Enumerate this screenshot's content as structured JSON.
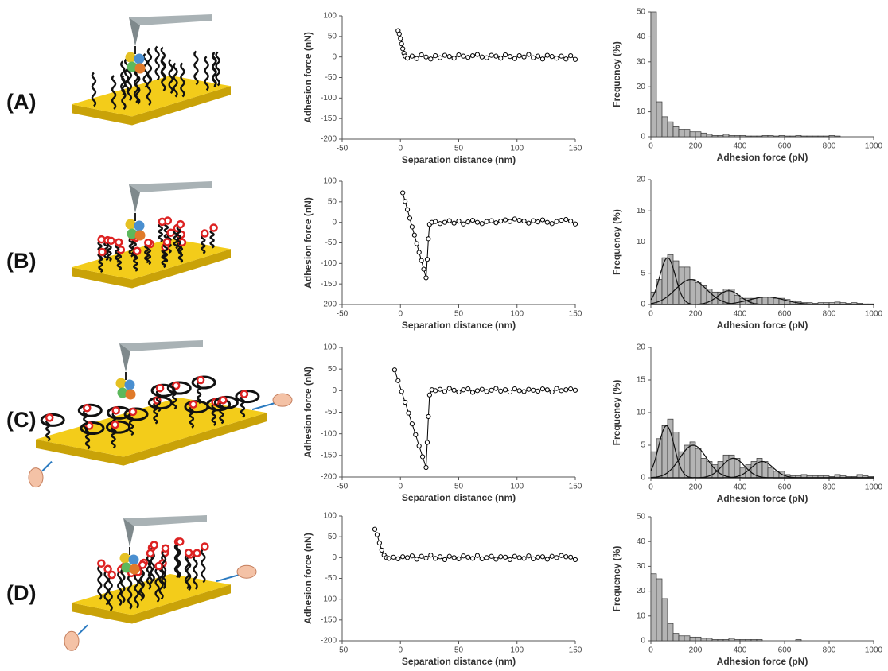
{
  "panel_labels": [
    "(A)",
    "(B)",
    "(C)",
    "(D)"
  ],
  "chart_data": [
    {
      "type": "line",
      "x_label": "Separation distance (nm)",
      "y_label": "Adhesion force (nN)",
      "xlim": [
        -50,
        150
      ],
      "ylim": [
        -200,
        100
      ],
      "xticks": [
        -50,
        0,
        50,
        100,
        150
      ],
      "yticks": [
        -200,
        -150,
        -100,
        -50,
        0,
        50,
        100
      ],
      "color": "#000000",
      "marker": "circle",
      "x": [
        -2,
        -1,
        0,
        1,
        2,
        3,
        4,
        6,
        10,
        14,
        18,
        22,
        26,
        30,
        34,
        38,
        42,
        46,
        50,
        54,
        58,
        62,
        66,
        70,
        74,
        78,
        82,
        86,
        90,
        94,
        98,
        102,
        106,
        110,
        114,
        118,
        122,
        126,
        130,
        134,
        138,
        142,
        146,
        150
      ],
      "values": [
        64,
        56,
        45,
        32,
        20,
        9,
        2,
        -3,
        2,
        -4,
        5,
        0,
        -5,
        3,
        -2,
        4,
        1,
        -3,
        5,
        2,
        -1,
        3,
        6,
        0,
        -2,
        4,
        2,
        -3,
        5,
        1,
        -4,
        3,
        0,
        6,
        -2,
        2,
        -5,
        4,
        1,
        -3,
        2,
        -5,
        3,
        -6
      ]
    },
    {
      "type": "histogram",
      "x_label": "Adhesion force (pN)",
      "y_label": "Frequency (%)",
      "xlim": [
        0,
        1000
      ],
      "ylim": [
        0,
        50
      ],
      "xticks": [
        0,
        200,
        400,
        600,
        800,
        1000
      ],
      "yticks": [
        0,
        10,
        20,
        30,
        40,
        50
      ],
      "color": "#b4b4b4",
      "bins": [
        0,
        25,
        50,
        75,
        100,
        125,
        150,
        175,
        200,
        225,
        250,
        275,
        300,
        325,
        350,
        375,
        400,
        425,
        450,
        475,
        500,
        525,
        550,
        575,
        600,
        625,
        650,
        675,
        700,
        725,
        750,
        775,
        800,
        825,
        850,
        875,
        900,
        925,
        950,
        975,
        1000
      ],
      "values": [
        50,
        14,
        8,
        6,
        4,
        3,
        3,
        2,
        2,
        1.5,
        1,
        0.5,
        0.5,
        1,
        0.5,
        0.5,
        0.5,
        0.3,
        0.3,
        0.3,
        0.5,
        0.5,
        0.3,
        0.5,
        0.3,
        0.3,
        0.5,
        0.3,
        0.3,
        0.3,
        0.3,
        0.3,
        0.5,
        0.3,
        0,
        0,
        0,
        0,
        0,
        0
      ]
    },
    {
      "type": "line",
      "x_label": "Separation distance (nm)",
      "y_label": "Adhesion force (nN)",
      "xlim": [
        -50,
        150
      ],
      "ylim": [
        -200,
        100
      ],
      "xticks": [
        -50,
        0,
        50,
        100,
        150
      ],
      "yticks": [
        -200,
        -150,
        -100,
        -50,
        0,
        50,
        100
      ],
      "color": "#000000",
      "marker": "circle",
      "x": [
        2,
        4,
        6,
        8,
        10,
        12,
        14,
        16,
        18,
        20,
        22,
        23,
        24,
        25,
        27,
        30,
        34,
        38,
        42,
        46,
        50,
        54,
        58,
        62,
        66,
        70,
        74,
        78,
        82,
        86,
        90,
        94,
        98,
        102,
        106,
        110,
        114,
        118,
        122,
        126,
        130,
        134,
        138,
        142,
        146,
        150
      ],
      "values": [
        72,
        51,
        31,
        10,
        -11,
        -31,
        -52,
        -73,
        -93,
        -114,
        -135,
        -90,
        -40,
        -5,
        0,
        2,
        -3,
        0,
        4,
        -2,
        3,
        -4,
        1,
        5,
        0,
        -3,
        2,
        4,
        -1,
        3,
        6,
        2,
        8,
        5,
        3,
        -2,
        4,
        1,
        6,
        0,
        -3,
        2,
        5,
        7,
        3,
        -4
      ]
    },
    {
      "type": "histogram",
      "x_label": "Adhesion force (pN)",
      "y_label": "Frequency (%)",
      "xlim": [
        0,
        1000
      ],
      "ylim": [
        0,
        20
      ],
      "xticks": [
        0,
        200,
        400,
        600,
        800,
        1000
      ],
      "yticks": [
        0,
        5,
        10,
        15,
        20
      ],
      "color": "#b4b4b4",
      "bins": [
        0,
        25,
        50,
        75,
        100,
        125,
        150,
        175,
        200,
        225,
        250,
        275,
        300,
        325,
        350,
        375,
        400,
        425,
        450,
        475,
        500,
        525,
        550,
        575,
        600,
        625,
        650,
        675,
        700,
        725,
        750,
        775,
        800,
        825,
        850,
        875,
        900,
        925,
        950,
        975,
        1000
      ],
      "values": [
        2,
        4,
        7.5,
        8,
        7,
        6,
        6,
        4,
        3.5,
        3,
        2.5,
        2,
        2,
        2.5,
        2.5,
        1.5,
        1,
        1,
        1,
        1.2,
        1.2,
        1.2,
        1,
        1,
        0.8,
        0.6,
        0.5,
        0.3,
        0.3,
        0.2,
        0.3,
        0.3,
        0.3,
        0.4,
        0.3,
        0.2,
        0.3,
        0.2,
        0.1,
        0.1
      ],
      "fits": [
        {
          "mean": 75,
          "sd": 35,
          "peak": 7.5
        },
        {
          "mean": 180,
          "sd": 70,
          "peak": 4
        },
        {
          "mean": 350,
          "sd": 50,
          "peak": 2.2
        },
        {
          "mean": 520,
          "sd": 80,
          "peak": 1.2
        }
      ]
    },
    {
      "type": "line",
      "x_label": "Separation distance (nm)",
      "y_label": "Adhesion force (nN)",
      "xlim": [
        -50,
        150
      ],
      "ylim": [
        -200,
        100
      ],
      "xticks": [
        -50,
        0,
        50,
        100,
        150
      ],
      "yticks": [
        -200,
        -150,
        -100,
        -50,
        0,
        50,
        100
      ],
      "color": "#000000",
      "marker": "circle",
      "x": [
        -5,
        -2,
        1,
        4,
        7,
        10,
        13,
        16,
        19,
        22,
        23,
        24,
        25,
        27,
        30,
        34,
        38,
        42,
        46,
        50,
        54,
        58,
        62,
        66,
        70,
        74,
        78,
        82,
        86,
        90,
        94,
        98,
        102,
        106,
        110,
        114,
        118,
        122,
        126,
        130,
        134,
        138,
        142,
        146,
        150
      ],
      "values": [
        48,
        23,
        -2,
        -27,
        -52,
        -77,
        -102,
        -128,
        -153,
        -178,
        -120,
        -60,
        -10,
        2,
        0,
        3,
        -2,
        5,
        1,
        -3,
        2,
        4,
        -4,
        0,
        3,
        -2,
        1,
        5,
        -1,
        2,
        -3,
        4,
        0,
        -2,
        3,
        1,
        -1,
        4,
        2,
        -3,
        5,
        0,
        2,
        4,
        1
      ]
    },
    {
      "type": "histogram",
      "x_label": "Adhesion force (pN)",
      "y_label": "Frequency (%)",
      "xlim": [
        0,
        1000
      ],
      "ylim": [
        0,
        20
      ],
      "xticks": [
        0,
        200,
        400,
        600,
        800,
        1000
      ],
      "yticks": [
        0,
        5,
        10,
        15,
        20
      ],
      "color": "#b4b4b4",
      "bins": [
        0,
        25,
        50,
        75,
        100,
        125,
        150,
        175,
        200,
        225,
        250,
        275,
        300,
        325,
        350,
        375,
        400,
        425,
        450,
        475,
        500,
        525,
        550,
        575,
        600,
        625,
        650,
        675,
        700,
        725,
        750,
        775,
        800,
        825,
        850,
        875,
        900,
        925,
        950,
        975,
        1000
      ],
      "values": [
        4,
        6,
        8,
        9,
        7,
        4,
        5,
        5.5,
        4.5,
        3,
        2.5,
        2,
        2.5,
        3.5,
        3.5,
        3,
        1.5,
        2,
        2.5,
        3,
        2.5,
        1.5,
        1,
        1,
        0.5,
        0.3,
        0.3,
        0.5,
        0.3,
        0.3,
        0.3,
        0.3,
        0.2,
        0.5,
        0.3,
        0.2,
        0.2,
        0.5,
        0.3,
        0.2
      ],
      "fits": [
        {
          "mean": 70,
          "sd": 35,
          "peak": 8
        },
        {
          "mean": 190,
          "sd": 60,
          "peak": 5
        },
        {
          "mean": 370,
          "sd": 50,
          "peak": 3
        },
        {
          "mean": 500,
          "sd": 50,
          "peak": 2.5
        }
      ]
    },
    {
      "type": "line",
      "x_label": "Separation distance (nm)",
      "y_label": "Adhesion force (nN)",
      "xlim": [
        -50,
        150
      ],
      "ylim": [
        -200,
        100
      ],
      "xticks": [
        -50,
        0,
        50,
        100,
        150
      ],
      "yticks": [
        -200,
        -150,
        -100,
        -50,
        0,
        50,
        100
      ],
      "color": "#000000",
      "marker": "circle",
      "x": [
        -22,
        -20,
        -18,
        -16,
        -14,
        -12,
        -10,
        -6,
        -2,
        2,
        6,
        10,
        14,
        18,
        22,
        26,
        30,
        34,
        38,
        42,
        46,
        50,
        54,
        58,
        62,
        66,
        70,
        74,
        78,
        82,
        86,
        90,
        94,
        98,
        102,
        106,
        110,
        114,
        118,
        122,
        126,
        130,
        134,
        138,
        142,
        146,
        150
      ],
      "values": [
        68,
        55,
        35,
        18,
        6,
        0,
        -2,
        1,
        -3,
        2,
        0,
        4,
        -4,
        3,
        -1,
        6,
        -2,
        2,
        -5,
        3,
        0,
        -3,
        4,
        1,
        -2,
        5,
        -3,
        0,
        3,
        -4,
        2,
        1,
        -5,
        3,
        0,
        -2,
        4,
        -3,
        1,
        2,
        -4,
        3,
        0,
        5,
        2,
        1,
        -5
      ]
    },
    {
      "type": "histogram",
      "x_label": "Adhesion force (pN)",
      "y_label": "Frequency (%)",
      "xlim": [
        0,
        1000
      ],
      "ylim": [
        0,
        50
      ],
      "xticks": [
        0,
        200,
        400,
        600,
        800,
        1000
      ],
      "yticks": [
        0,
        10,
        20,
        30,
        40,
        50
      ],
      "color": "#b4b4b4",
      "bins": [
        0,
        25,
        50,
        75,
        100,
        125,
        150,
        175,
        200,
        225,
        250,
        275,
        300,
        325,
        350,
        375,
        400,
        425,
        450,
        475,
        500,
        525,
        550,
        575,
        600,
        625,
        650,
        675,
        700,
        725,
        750,
        775,
        800,
        825,
        850,
        875,
        900,
        925,
        950,
        975,
        1000
      ],
      "values": [
        27,
        25,
        17,
        7,
        3,
        2,
        2,
        1.5,
        1.5,
        1,
        1,
        0.5,
        0.5,
        0.5,
        1,
        0.5,
        0.5,
        0.5,
        0.5,
        0.5,
        0,
        0,
        0,
        0,
        0,
        0,
        0.5,
        0,
        0,
        0,
        0,
        0,
        0,
        0,
        0,
        0,
        0,
        0,
        0,
        0
      ]
    }
  ]
}
